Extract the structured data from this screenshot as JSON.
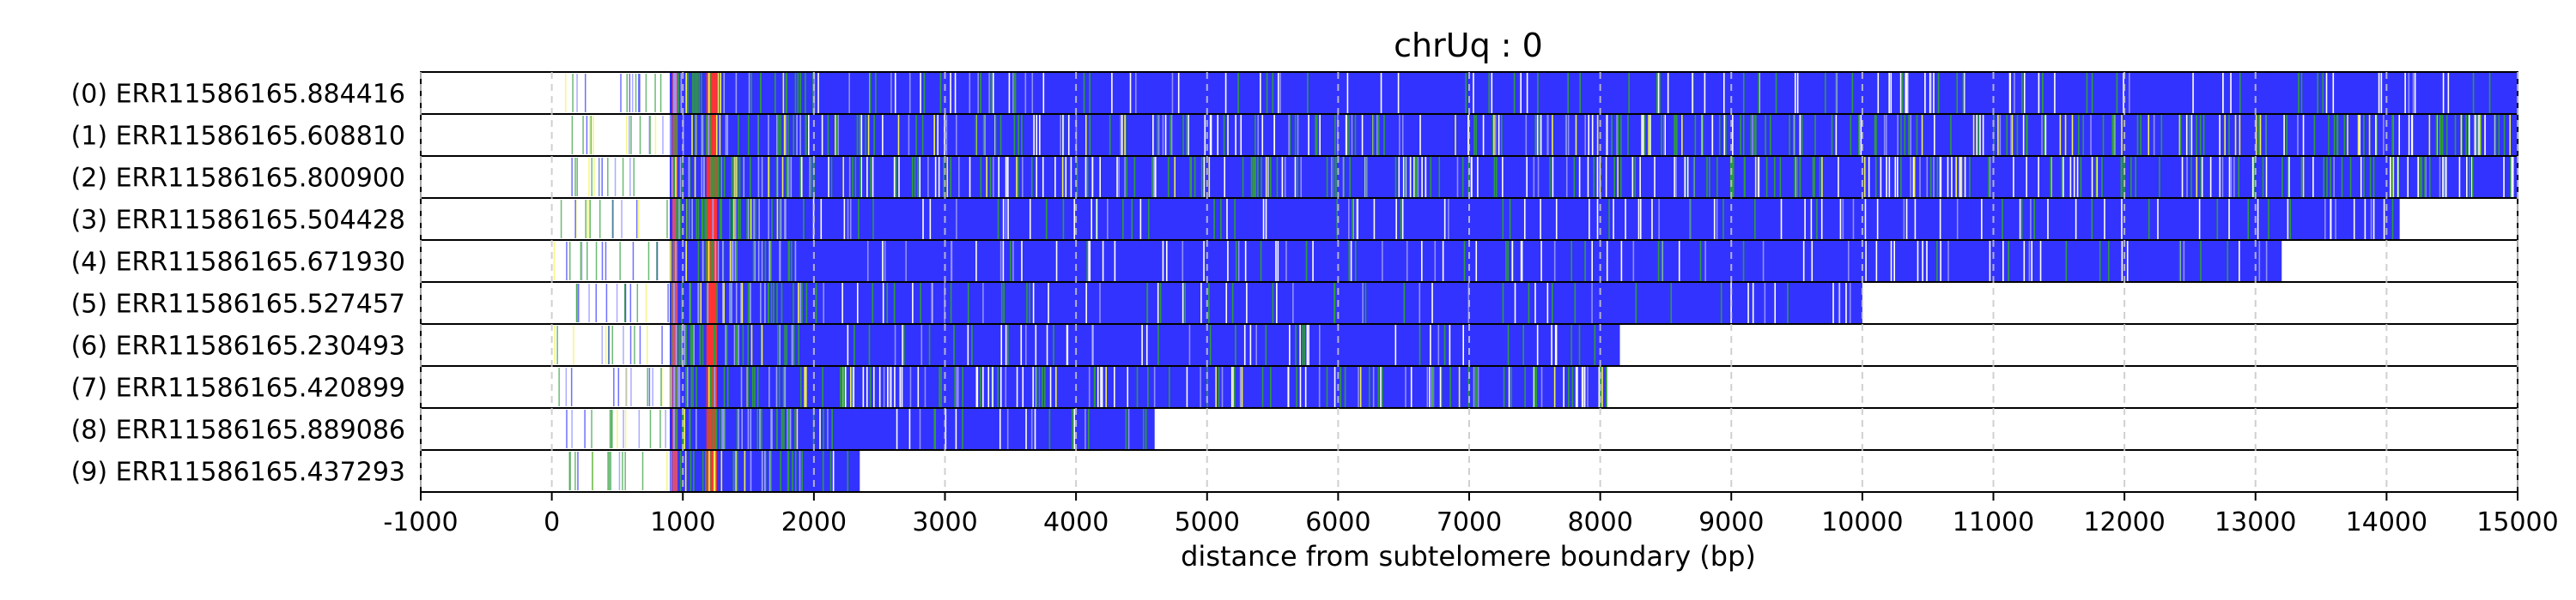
{
  "chart_data": {
    "type": "track-bands",
    "title": "chrUq : 0",
    "xlabel": "distance from subtelomere boundary (bp)",
    "xlim": [
      -1000,
      15000
    ],
    "xticks": [
      -1000,
      0,
      1000,
      2000,
      3000,
      4000,
      5000,
      6000,
      7000,
      8000,
      9000,
      10000,
      11000,
      12000,
      13000,
      14000,
      15000
    ],
    "grid": "vertical dashed",
    "colors": {
      "blue": "#3333ff",
      "green": "#2e9c3a",
      "yellow": "#f2f24a",
      "red": "#ff3333",
      "grid": "#c8c8c8"
    },
    "reads": [
      {
        "label": "(0) ERR11586165.884416",
        "start": 900,
        "end": 15000
      },
      {
        "label": "(1) ERR11586165.608810",
        "start": 900,
        "end": 15000
      },
      {
        "label": "(2) ERR11586165.800900",
        "start": 900,
        "end": 15000
      },
      {
        "label": "(3) ERR11586165.504428",
        "start": 900,
        "end": 14100
      },
      {
        "label": "(4) ERR11586165.671930",
        "start": 900,
        "end": 13200
      },
      {
        "label": "(5) ERR11586165.527457",
        "start": 900,
        "end": 10000
      },
      {
        "label": "(6) ERR11586165.230493",
        "start": 900,
        "end": 8150
      },
      {
        "label": "(7) ERR11586165.420899",
        "start": 900,
        "end": 8050
      },
      {
        "label": "(8) ERR11586165.889086",
        "start": 900,
        "end": 4600
      },
      {
        "label": "(9) ERR11586165.437293",
        "start": 900,
        "end": 2350
      }
    ]
  }
}
